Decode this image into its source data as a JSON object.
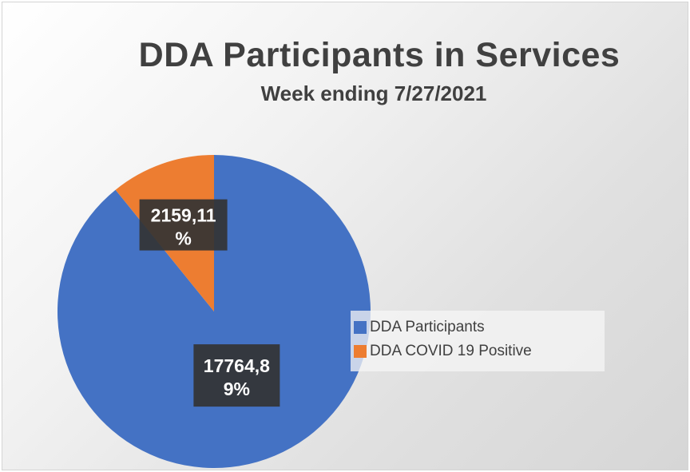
{
  "chart_data": {
    "type": "pie",
    "title": "DDA Participants in Services",
    "subtitle": "Week ending 7/27/2021",
    "slices": [
      {
        "name": "DDA Participants",
        "value": 17764,
        "percent": 89,
        "label_line1": "17764,8",
        "label_line2": "9%",
        "color": "#4472c4"
      },
      {
        "name": "DDA COVID 19 Positive",
        "value": 2159,
        "percent": 11,
        "label_line1": "2159,11",
        "label_line2": "%",
        "color": "#ed7d31"
      }
    ],
    "legend_position": "right"
  }
}
